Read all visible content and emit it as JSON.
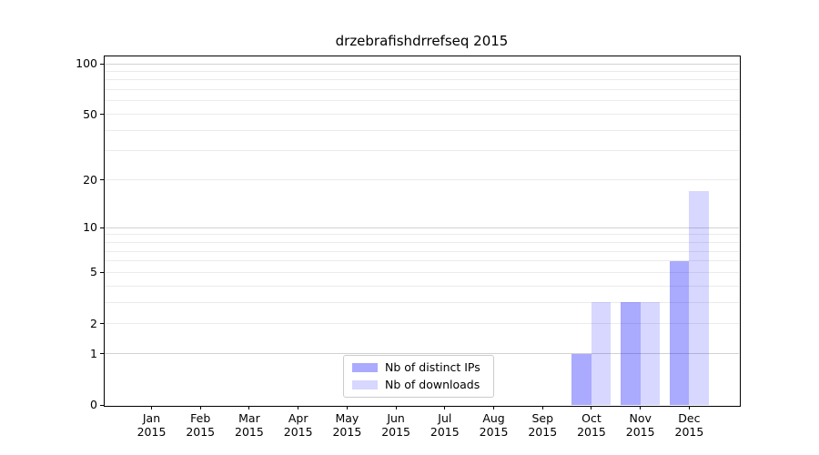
{
  "figure": {
    "title": "drzebrafishdrrefseq 2015"
  },
  "chart_data": {
    "type": "bar",
    "title": "drzebrafishdrrefseq 2015",
    "categories": [
      "Jan",
      "Feb",
      "Mar",
      "Apr",
      "May",
      "Jun",
      "Jul",
      "Aug",
      "Sep",
      "Oct",
      "Nov",
      "Dec"
    ],
    "year_label": "2015",
    "series": [
      {
        "name": "Nb of distinct IPs",
        "color": "rgba(0,0,255,0.335)",
        "values": [
          0,
          0,
          0,
          0,
          0,
          0,
          0,
          0,
          0,
          1,
          3,
          6
        ]
      },
      {
        "name": "Nb of downloads",
        "color": "rgba(0,0,255,0.155)",
        "values": [
          0,
          0,
          0,
          0,
          0,
          0,
          0,
          0,
          0,
          3,
          3,
          17
        ]
      }
    ],
    "xlabel": "",
    "ylabel": "",
    "yscale": "log1p",
    "yticks": [
      0,
      1,
      2,
      5,
      10,
      20,
      50,
      100
    ],
    "ylim": [
      0,
      112
    ],
    "grid": {
      "orientation": "horizontal",
      "major_lines": [
        1,
        10,
        100
      ],
      "minor_lines": [
        2,
        3,
        4,
        5,
        6,
        7,
        8,
        9,
        20,
        30,
        40,
        50,
        60,
        70,
        80,
        90
      ]
    },
    "legend_position": "lower center",
    "plot_background": "#ffffff",
    "spine_color": "#000000"
  }
}
